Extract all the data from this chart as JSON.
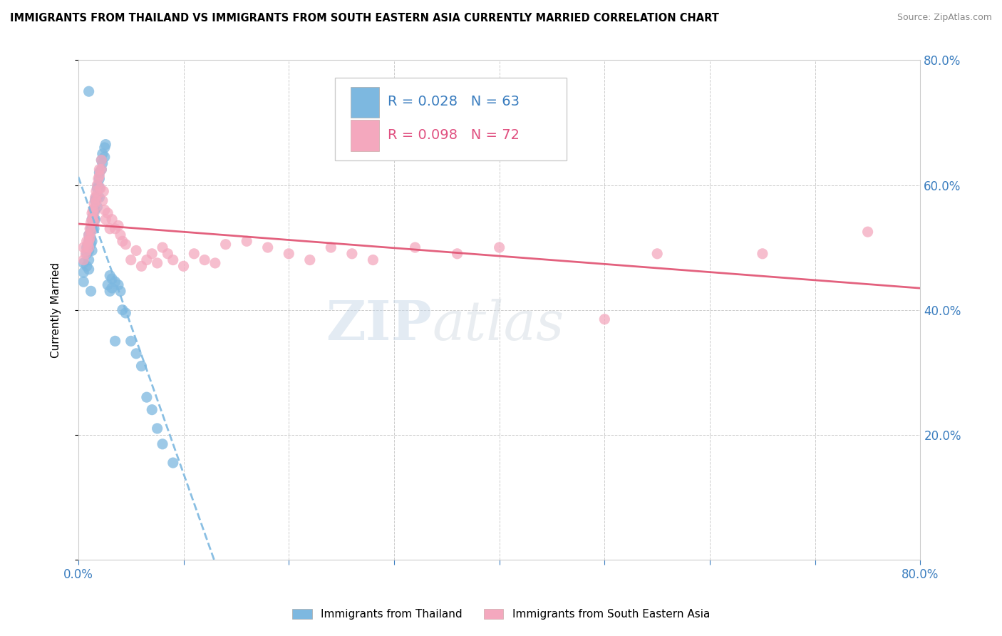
{
  "title": "IMMIGRANTS FROM THAILAND VS IMMIGRANTS FROM SOUTH EASTERN ASIA CURRENTLY MARRIED CORRELATION CHART",
  "source": "Source: ZipAtlas.com",
  "ylabel": "Currently Married",
  "xlim": [
    0.0,
    0.8
  ],
  "ylim": [
    0.0,
    0.8
  ],
  "legend_R1": "R = 0.028",
  "legend_N1": "N = 63",
  "legend_R2": "R = 0.098",
  "legend_N2": "N = 72",
  "color_blue": "#7db8e0",
  "color_pink": "#f4a8be",
  "color_text": "#3a7dbf",
  "watermark_zip": "ZIP",
  "watermark_atlas": "atlas",
  "label1": "Immigrants from Thailand",
  "label2": "Immigrants from South Eastern Asia",
  "blue_x": [
    0.005,
    0.005,
    0.005,
    0.008,
    0.008,
    0.008,
    0.01,
    0.01,
    0.01,
    0.01,
    0.01,
    0.012,
    0.012,
    0.012,
    0.013,
    0.013,
    0.013,
    0.013,
    0.014,
    0.014,
    0.015,
    0.015,
    0.015,
    0.016,
    0.016,
    0.016,
    0.017,
    0.018,
    0.018,
    0.018,
    0.019,
    0.02,
    0.02,
    0.02,
    0.02,
    0.022,
    0.022,
    0.023,
    0.023,
    0.025,
    0.025,
    0.026,
    0.028,
    0.03,
    0.03,
    0.032,
    0.032,
    0.035,
    0.038,
    0.04,
    0.042,
    0.045,
    0.05,
    0.055,
    0.06,
    0.065,
    0.07,
    0.075,
    0.08,
    0.09,
    0.01,
    0.012,
    0.035
  ],
  "blue_y": [
    0.475,
    0.46,
    0.445,
    0.5,
    0.49,
    0.47,
    0.52,
    0.51,
    0.495,
    0.48,
    0.465,
    0.53,
    0.515,
    0.505,
    0.545,
    0.53,
    0.51,
    0.495,
    0.55,
    0.54,
    0.56,
    0.545,
    0.53,
    0.575,
    0.56,
    0.545,
    0.58,
    0.595,
    0.58,
    0.565,
    0.6,
    0.62,
    0.61,
    0.595,
    0.58,
    0.64,
    0.625,
    0.65,
    0.635,
    0.66,
    0.645,
    0.665,
    0.44,
    0.455,
    0.43,
    0.45,
    0.435,
    0.445,
    0.44,
    0.43,
    0.4,
    0.395,
    0.35,
    0.33,
    0.31,
    0.26,
    0.24,
    0.21,
    0.185,
    0.155,
    0.75,
    0.43,
    0.35
  ],
  "pink_x": [
    0.005,
    0.005,
    0.007,
    0.008,
    0.008,
    0.009,
    0.01,
    0.01,
    0.01,
    0.011,
    0.011,
    0.012,
    0.012,
    0.013,
    0.013,
    0.014,
    0.014,
    0.015,
    0.015,
    0.015,
    0.016,
    0.016,
    0.017,
    0.017,
    0.018,
    0.018,
    0.019,
    0.02,
    0.02,
    0.021,
    0.022,
    0.022,
    0.023,
    0.024,
    0.025,
    0.026,
    0.028,
    0.03,
    0.032,
    0.035,
    0.038,
    0.04,
    0.042,
    0.045,
    0.05,
    0.055,
    0.06,
    0.065,
    0.07,
    0.075,
    0.08,
    0.085,
    0.09,
    0.1,
    0.11,
    0.12,
    0.13,
    0.14,
    0.16,
    0.18,
    0.2,
    0.22,
    0.24,
    0.26,
    0.28,
    0.32,
    0.36,
    0.4,
    0.5,
    0.55,
    0.65,
    0.75
  ],
  "pink_y": [
    0.5,
    0.48,
    0.49,
    0.51,
    0.495,
    0.505,
    0.52,
    0.51,
    0.5,
    0.53,
    0.515,
    0.54,
    0.525,
    0.545,
    0.555,
    0.56,
    0.545,
    0.57,
    0.555,
    0.54,
    0.58,
    0.565,
    0.59,
    0.575,
    0.6,
    0.585,
    0.61,
    0.625,
    0.615,
    0.595,
    0.64,
    0.625,
    0.575,
    0.59,
    0.56,
    0.545,
    0.555,
    0.53,
    0.545,
    0.53,
    0.535,
    0.52,
    0.51,
    0.505,
    0.48,
    0.495,
    0.47,
    0.48,
    0.49,
    0.475,
    0.5,
    0.49,
    0.48,
    0.47,
    0.49,
    0.48,
    0.475,
    0.505,
    0.51,
    0.5,
    0.49,
    0.48,
    0.5,
    0.49,
    0.48,
    0.5,
    0.49,
    0.5,
    0.385,
    0.49,
    0.49,
    0.525
  ]
}
